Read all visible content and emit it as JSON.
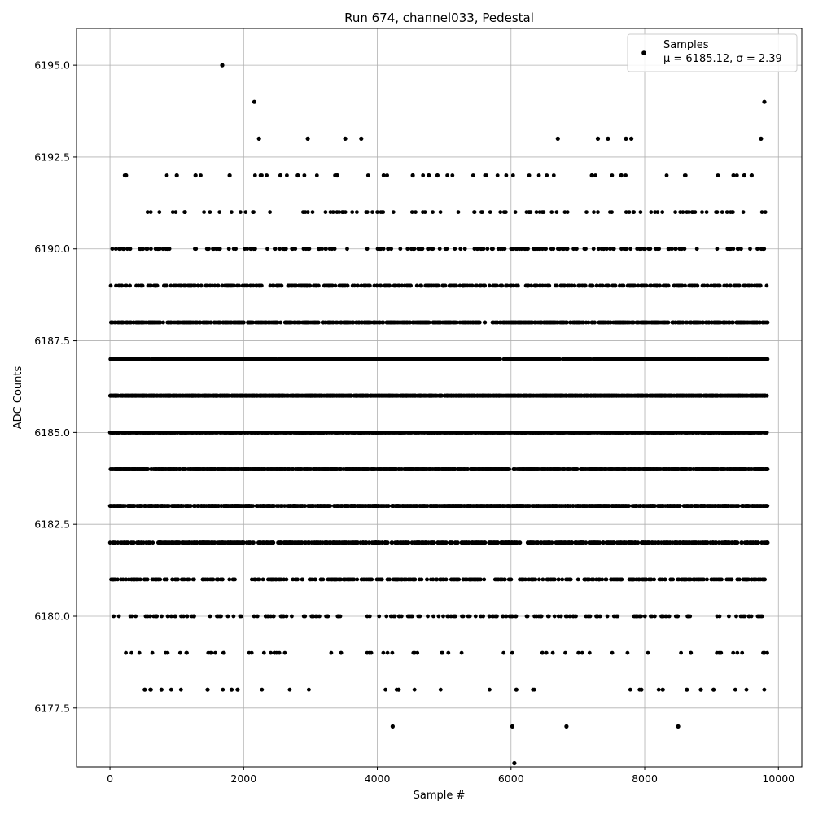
{
  "chart_data": {
    "type": "scatter",
    "title": "Run 674, channel033, Pedestal",
    "xlabel": "Sample #",
    "ylabel": "ADC Counts",
    "xlim": [
      -500,
      10350
    ],
    "ylim": [
      6175.9,
      6196.0
    ],
    "xticks": [
      0,
      2000,
      4000,
      6000,
      8000,
      10000
    ],
    "xtick_labels": [
      "0",
      "2000",
      "4000",
      "6000",
      "8000",
      "10000"
    ],
    "yticks": [
      6177.5,
      6180.0,
      6182.5,
      6185.0,
      6187.5,
      6190.0,
      6192.5,
      6195.0
    ],
    "ytick_labels": [
      "6177.5",
      "6180.0",
      "6182.5",
      "6185.0",
      "6187.5",
      "6190.0",
      "6192.5",
      "6195.0"
    ],
    "grid": true,
    "legend": {
      "position": "top-right",
      "label": "Samples",
      "stats": "μ = 6185.12, σ = 2.39"
    },
    "marker_color": "#000000",
    "series": [
      {
        "name": "Samples",
        "x_start": 0,
        "x_end": 9840,
        "n_points": 9841,
        "mean": 6185.12,
        "std": 2.39,
        "representative_points": [
          {
            "x": 1680,
            "y": 6195
          },
          {
            "x": 2160,
            "y": 6194
          },
          {
            "x": 9790,
            "y": 6194
          },
          {
            "x": 2230,
            "y": 6193
          },
          {
            "x": 2960,
            "y": 6193
          },
          {
            "x": 3520,
            "y": 6193
          },
          {
            "x": 3760,
            "y": 6193
          },
          {
            "x": 6700,
            "y": 6193
          },
          {
            "x": 7300,
            "y": 6193
          },
          {
            "x": 7450,
            "y": 6193
          },
          {
            "x": 7720,
            "y": 6193
          },
          {
            "x": 7800,
            "y": 6193
          },
          {
            "x": 9740,
            "y": 6193
          },
          {
            "x": 240,
            "y": 6192
          },
          {
            "x": 1000,
            "y": 6192
          },
          {
            "x": 1280,
            "y": 6192
          },
          {
            "x": 1790,
            "y": 6192
          },
          {
            "x": 2550,
            "y": 6192
          },
          {
            "x": 2810,
            "y": 6192
          },
          {
            "x": 3400,
            "y": 6192
          },
          {
            "x": 4530,
            "y": 6192
          },
          {
            "x": 4770,
            "y": 6192
          },
          {
            "x": 4900,
            "y": 6192
          },
          {
            "x": 7210,
            "y": 6192
          },
          {
            "x": 7650,
            "y": 6192
          },
          {
            "x": 9490,
            "y": 6192
          },
          {
            "x": 9600,
            "y": 6192
          },
          {
            "x": 4230,
            "y": 6177
          },
          {
            "x": 6020,
            "y": 6177
          },
          {
            "x": 6830,
            "y": 6177
          },
          {
            "x": 8500,
            "y": 6177
          },
          {
            "x": 6050,
            "y": 6176
          },
          {
            "x": 520,
            "y": 6178
          },
          {
            "x": 610,
            "y": 6178
          },
          {
            "x": 770,
            "y": 6178
          },
          {
            "x": 1460,
            "y": 6178
          },
          {
            "x": 1820,
            "y": 6178
          },
          {
            "x": 1910,
            "y": 6178
          },
          {
            "x": 4320,
            "y": 6178
          },
          {
            "x": 6080,
            "y": 6178
          },
          {
            "x": 7950,
            "y": 6178
          },
          {
            "x": 8270,
            "y": 6178
          },
          {
            "x": 8630,
            "y": 6178
          },
          {
            "x": 8840,
            "y": 6178
          },
          {
            "x": 9030,
            "y": 6178
          }
        ]
      }
    ]
  }
}
